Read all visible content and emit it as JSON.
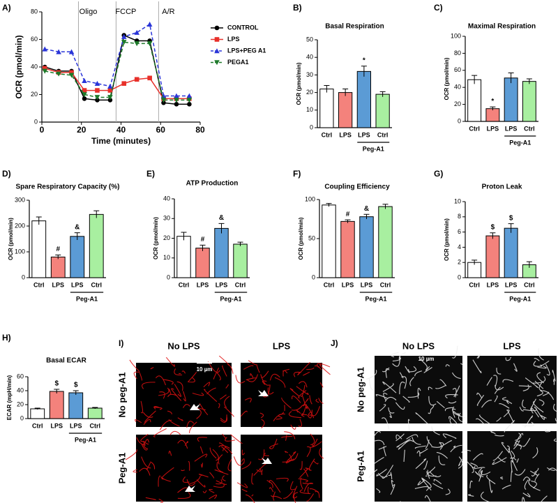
{
  "chart_data": [
    {
      "type": "line",
      "panel_label": "A)",
      "xlabel": "Time (minutes)",
      "ylabel": "OCR (pmol/min)",
      "x": [
        1.5,
        8.5,
        15,
        21.5,
        28,
        34.5,
        41.5,
        48,
        54.5,
        61.5,
        68,
        74.5
      ],
      "xlim": [
        0,
        80
      ],
      "xticks": [
        0,
        20,
        40,
        60,
        80
      ],
      "ylim": [
        0,
        80
      ],
      "yticks": [
        0,
        20,
        40,
        60,
        80
      ],
      "phases": [
        {
          "x": 18.5,
          "label": "Oligo"
        },
        {
          "x": 37.5,
          "label": "FCCP"
        },
        {
          "x": 59,
          "label": "A/R"
        }
      ],
      "series": [
        {
          "name": "CONTROL",
          "color": "#000000",
          "marker": "circle",
          "dashed": false,
          "values": [
            40,
            37,
            37,
            17,
            16,
            16,
            63,
            59,
            59,
            14,
            13,
            13
          ]
        },
        {
          "name": "LPS",
          "color": "#e8302a",
          "marker": "square",
          "dashed": false,
          "values": [
            39,
            36,
            36,
            23,
            23,
            23,
            28,
            31,
            32,
            17,
            17,
            17
          ]
        },
        {
          "name": "LPS+PEG A1",
          "color": "#2a35d8",
          "marker": "triangle",
          "dashed": true,
          "values": [
            53,
            51,
            51,
            30,
            28,
            26,
            62,
            65,
            71,
            19,
            19,
            19
          ]
        },
        {
          "name": "PEGA1",
          "color": "#1d7a2a",
          "marker": "triangle-down",
          "dashed": true,
          "values": [
            37,
            35,
            34,
            20,
            18,
            18,
            58,
            57,
            57,
            16,
            16,
            16
          ]
        }
      ]
    },
    {
      "type": "bar",
      "panel_label": "B)",
      "title": "Basal Respiration",
      "ylabel": "OCR (pmol/min)",
      "group_label": "Peg-A1",
      "categories": [
        "Ctrl",
        "LPS",
        "LPS",
        "Ctrl"
      ],
      "values": [
        22,
        20,
        32,
        19
      ],
      "errors": [
        2,
        2,
        3,
        1.5
      ],
      "annotations": [
        null,
        null,
        "*",
        null
      ],
      "colors": [
        "#ffffff",
        "#f4827c",
        "#5b9bd5",
        "#a8efa0"
      ],
      "ylim": [
        0,
        50
      ],
      "yticks": [
        0,
        10,
        20,
        30,
        40,
        50
      ]
    },
    {
      "type": "bar",
      "panel_label": "C)",
      "title": "Maximal Respiration",
      "ylabel": "OCR (pmol/min)",
      "group_label": "Peg-A1",
      "categories": [
        "Ctrl",
        "LPS",
        "LPS",
        "Ctrl"
      ],
      "values": [
        49,
        15,
        51,
        47
      ],
      "errors": [
        5,
        2,
        6,
        3
      ],
      "annotations": [
        null,
        "*",
        null,
        null
      ],
      "colors": [
        "#ffffff",
        "#f4827c",
        "#5b9bd5",
        "#a8efa0"
      ],
      "ylim": [
        0,
        100
      ],
      "yticks": [
        0,
        20,
        40,
        60,
        80,
        100
      ]
    },
    {
      "type": "bar",
      "panel_label": "D)",
      "title": "Spare Respiratory Capacity (%)",
      "ylabel": "OCR (pmol/min)",
      "group_label": "Peg-A1",
      "categories": [
        "Ctrl",
        "LPS",
        "LPS",
        "Ctrl"
      ],
      "values": [
        220,
        80,
        160,
        245
      ],
      "errors": [
        15,
        8,
        14,
        14
      ],
      "annotations": [
        null,
        "#",
        "&",
        null
      ],
      "colors": [
        "#ffffff",
        "#f4827c",
        "#5b9bd5",
        "#a8efa0"
      ],
      "ylim": [
        0,
        300
      ],
      "yticks": [
        0,
        100,
        200,
        300
      ]
    },
    {
      "type": "bar",
      "panel_label": "E)",
      "title": "ATP Production",
      "ylabel": "OCR (pmol/min)",
      "group_label": "Peg-A1",
      "categories": [
        "Ctrl",
        "LPS",
        "LPS",
        "Ctrl"
      ],
      "values": [
        21,
        15,
        25,
        17
      ],
      "errors": [
        2,
        1.5,
        2.5,
        1
      ],
      "annotations": [
        null,
        "#",
        "&",
        null
      ],
      "colors": [
        "#ffffff",
        "#f4827c",
        "#5b9bd5",
        "#a8efa0"
      ],
      "ylim": [
        0,
        40
      ],
      "yticks": [
        0,
        10,
        20,
        30,
        40
      ]
    },
    {
      "type": "bar",
      "panel_label": "F)",
      "title": "Coupling Efficiency",
      "ylabel": "OCR (pmol/min)",
      "group_label": "Peg-A1",
      "categories": [
        "Ctrl",
        "LPS",
        "LPS",
        "Ctrl"
      ],
      "values": [
        93,
        72,
        78,
        91
      ],
      "errors": [
        2,
        2,
        3,
        3
      ],
      "annotations": [
        null,
        "#",
        "&",
        null
      ],
      "colors": [
        "#ffffff",
        "#f4827c",
        "#5b9bd5",
        "#a8efa0"
      ],
      "ylim": [
        0,
        100
      ],
      "yticks": [
        0,
        50,
        100
      ]
    },
    {
      "type": "bar",
      "panel_label": "G)",
      "title": "Proton Leak",
      "ylabel": "OCR (pmol/min)",
      "group_label": "Peg-A1",
      "categories": [
        "Ctrl",
        "LPS",
        "LPS",
        "Ctrl"
      ],
      "values": [
        2,
        5.5,
        6.5,
        1.7
      ],
      "errors": [
        0.3,
        0.4,
        0.6,
        0.4
      ],
      "annotations": [
        null,
        "$",
        "$",
        null
      ],
      "colors": [
        "#ffffff",
        "#f4827c",
        "#5b9bd5",
        "#a8efa0"
      ],
      "ylim": [
        0,
        10
      ],
      "yticks": [
        0,
        2,
        4,
        6,
        8,
        10
      ]
    },
    {
      "type": "bar",
      "panel_label": "H)",
      "title": "Basal ECAR",
      "ylabel": "ECAR (mpH/min)",
      "group_label": "Peg-A1",
      "categories": [
        "Ctrl",
        "LPS",
        "LPS",
        "Ctrl"
      ],
      "values": [
        14,
        39,
        37,
        15
      ],
      "errors": [
        1,
        3,
        3,
        1
      ],
      "annotations": [
        null,
        "$",
        "$",
        null
      ],
      "colors": [
        "#ffffff",
        "#f4827c",
        "#5b9bd5",
        "#a8efa0"
      ],
      "ylim": [
        0,
        60
      ],
      "yticks": [
        0,
        20,
        40,
        60
      ]
    }
  ],
  "images": [
    {
      "panel_label": "I)",
      "columns": [
        "No LPS",
        "LPS"
      ],
      "rows": [
        "No peg-A1",
        "Peg-A1"
      ],
      "scale": "10 µm"
    },
    {
      "panel_label": "J)",
      "columns": [
        "No LPS",
        "LPS"
      ],
      "rows": [
        "No peg-A1",
        "Peg-A1"
      ],
      "scale": "10 µm"
    }
  ]
}
